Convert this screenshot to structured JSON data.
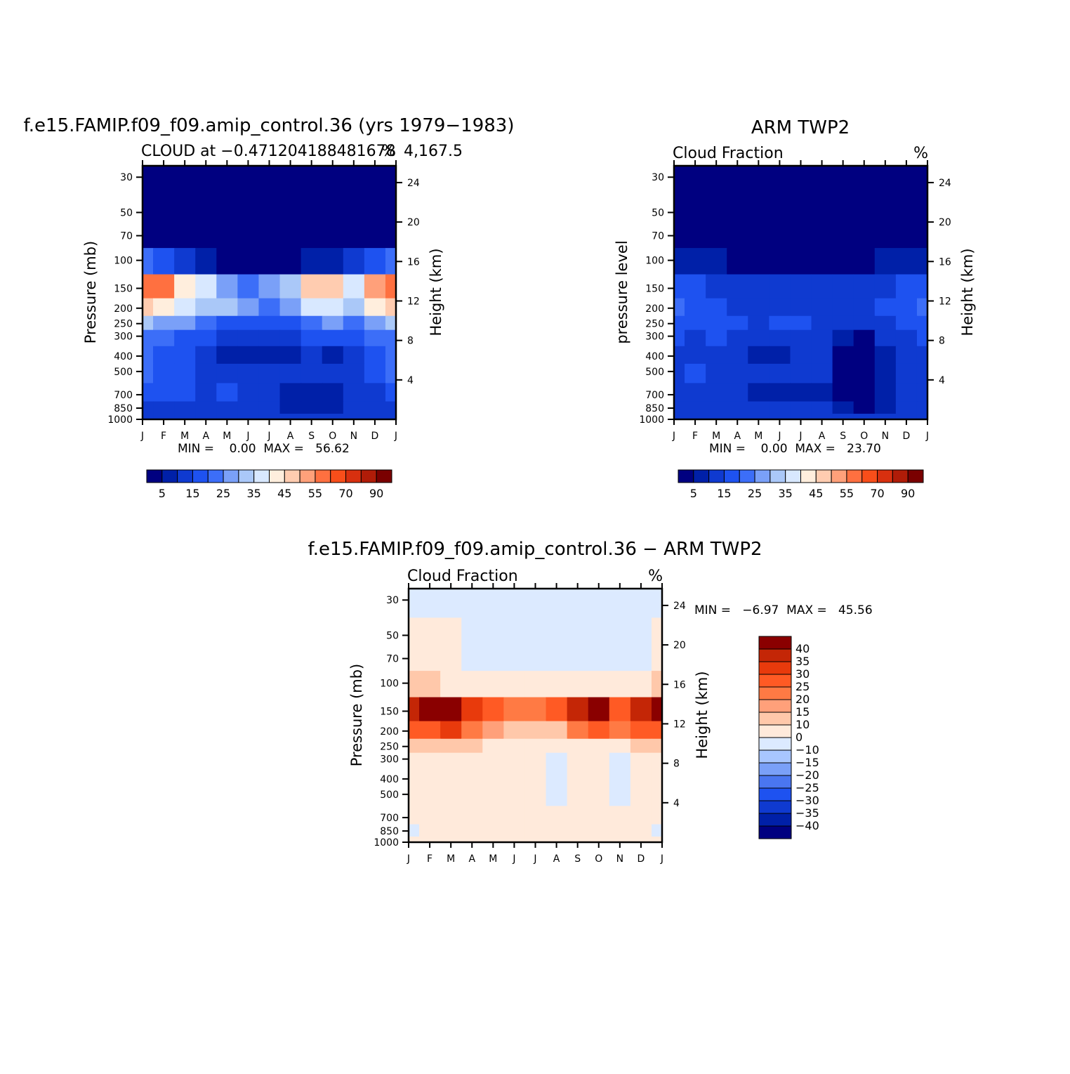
{
  "months": [
    "J",
    "F",
    "M",
    "A",
    "M",
    "J",
    "J",
    "A",
    "S",
    "O",
    "N",
    "D",
    "J"
  ],
  "pressure_ticks": [
    30,
    50,
    70,
    100,
    150,
    200,
    250,
    300,
    400,
    500,
    700,
    850,
    1000
  ],
  "height_ticks": [
    4,
    8,
    12,
    16,
    20,
    24
  ],
  "seq_levels": [
    "5",
    "15",
    "25",
    "35",
    "45",
    "55",
    "70",
    "90"
  ],
  "seq_colors": [
    "#000080",
    "#0020a8",
    "#0f3ad0",
    "#1e52f0",
    "#3c6ef8",
    "#7aa0f8",
    "#aac8f8",
    "#d8e8ff",
    "#ffeedd",
    "#ffccb0",
    "#ffa07a",
    "#ff7040",
    "#f84e1a",
    "#d8300f",
    "#b01c08",
    "#7a0000"
  ],
  "diff_levels": [
    "40",
    "35",
    "30",
    "25",
    "20",
    "15",
    "10",
    "0",
    "−10",
    "−15",
    "−20",
    "−25",
    "−30",
    "−35",
    "−40"
  ],
  "diff_colors": [
    "#8a0000",
    "#c42606",
    "#e83a0c",
    "#ff5a24",
    "#ff7a44",
    "#ffa07a",
    "#ffc8aa",
    "#ffeadb",
    "#dceaff",
    "#a8c6ff",
    "#7aa0f8",
    "#4a76f0",
    "#1e52f0",
    "#0f3ad0",
    "#0020a8",
    "#000080"
  ],
  "panels": [
    {
      "id": "model",
      "title": "f.e15.FAMIP.f09_f09.amip_control.36 (yrs 1979−1983)",
      "subtitle": "CLOUD at −0.471204188481678",
      "subtitle2": "4,167.5",
      "units": "%",
      "ylabel": "Pressure (mb)",
      "ylabel_right": "Height (km)",
      "stats": "MIN =    0.00  MAX =   56.62"
    },
    {
      "id": "obs",
      "title": "ARM TWP2",
      "subtitle": "Cloud Fraction",
      "units": "%",
      "ylabel": "pressure level",
      "ylabel_right": "Height (km)",
      "stats": "MIN =    0.00  MAX =   23.70"
    },
    {
      "id": "diff",
      "title": "f.e15.FAMIP.f09_f09.amip_control.36 − ARM TWP2",
      "subtitle": "Cloud Fraction",
      "units": "%",
      "ylabel": "Pressure (mb)",
      "ylabel_right": "Height (km)",
      "stats": "MIN =   −6.97  MAX =   45.56"
    }
  ],
  "chart_data": [
    {
      "type": "heatmap",
      "title": "f.e15.FAMIP.f09_f09.amip_control.36 (yrs 1979−1983)",
      "subtitle": "CLOUD at −0.4712041884816784,167.5",
      "xlabel": "",
      "ylabel": "Pressure (mb)",
      "ylabel_right": "Height (km)",
      "x": [
        "J",
        "F",
        "M",
        "A",
        "M",
        "J",
        "J",
        "A",
        "S",
        "O",
        "N",
        "D",
        "J"
      ],
      "y": [
        30,
        50,
        70,
        100,
        150,
        200,
        250,
        300,
        400,
        500,
        700,
        850,
        1000
      ],
      "ylim": [
        1000,
        30
      ],
      "yscale": "log",
      "min": 0.0,
      "max": 56.62,
      "values": [
        [
          0,
          0,
          0,
          0,
          0,
          0,
          0,
          0,
          0,
          0,
          0,
          0,
          0
        ],
        [
          0,
          0,
          0,
          0,
          0,
          0,
          0,
          0,
          0,
          0,
          0,
          0,
          0
        ],
        [
          1,
          1,
          1,
          1,
          1,
          1,
          1,
          1,
          1,
          1,
          1,
          1,
          1
        ],
        [
          20,
          15,
          12,
          6,
          4,
          3,
          2,
          3,
          6,
          8,
          12,
          18,
          20
        ],
        [
          55,
          56,
          40,
          35,
          28,
          24,
          26,
          30,
          45,
          48,
          38,
          50,
          55
        ],
        [
          45,
          43,
          35,
          33,
          30,
          26,
          24,
          28,
          35,
          38,
          32,
          42,
          45
        ],
        [
          30,
          28,
          25,
          22,
          18,
          15,
          15,
          18,
          22,
          25,
          24,
          28,
          30
        ],
        [
          22,
          20,
          18,
          15,
          12,
          10,
          10,
          12,
          15,
          18,
          18,
          20,
          22
        ],
        [
          20,
          18,
          15,
          10,
          8,
          8,
          8,
          9,
          10,
          8,
          10,
          15,
          20
        ],
        [
          20,
          18,
          18,
          12,
          14,
          14,
          12,
          10,
          12,
          10,
          12,
          15,
          20
        ],
        [
          18,
          16,
          15,
          14,
          15,
          12,
          10,
          8,
          8,
          8,
          12,
          14,
          18
        ],
        [
          12,
          12,
          12,
          12,
          12,
          12,
          10,
          8,
          8,
          8,
          10,
          12,
          12
        ],
        [
          10,
          10,
          10,
          10,
          10,
          10,
          10,
          10,
          10,
          10,
          10,
          10,
          10
        ]
      ]
    },
    {
      "type": "heatmap",
      "title": "ARM TWP2",
      "subtitle": "Cloud Fraction",
      "xlabel": "",
      "ylabel": "pressure level",
      "ylabel_right": "Height (km)",
      "x": [
        "J",
        "F",
        "M",
        "A",
        "M",
        "J",
        "J",
        "A",
        "S",
        "O",
        "N",
        "D",
        "J"
      ],
      "y": [
        30,
        50,
        70,
        100,
        150,
        200,
        250,
        300,
        400,
        500,
        700,
        850,
        1000
      ],
      "ylim": [
        1000,
        30
      ],
      "yscale": "log",
      "min": 0.0,
      "max": 23.7,
      "values": [
        [
          0,
          0,
          0,
          0,
          0,
          0,
          0,
          0,
          0,
          0,
          0,
          0,
          0
        ],
        [
          0,
          0,
          0,
          0,
          0,
          0,
          0,
          0,
          0,
          0,
          0,
          0,
          0
        ],
        [
          1,
          1,
          1,
          1,
          1,
          1,
          1,
          1,
          1,
          1,
          1,
          1,
          1
        ],
        [
          8,
          7,
          5,
          4,
          3,
          3,
          4,
          4,
          3,
          4,
          5,
          6,
          8
        ],
        [
          18,
          16,
          12,
          12,
          11,
          12,
          13,
          12,
          10,
          12,
          14,
          16,
          18
        ],
        [
          22,
          18,
          16,
          14,
          14,
          14,
          14,
          14,
          14,
          14,
          16,
          18,
          22
        ],
        [
          18,
          16,
          16,
          15,
          14,
          15,
          15,
          14,
          12,
          12,
          14,
          16,
          18
        ],
        [
          16,
          14,
          15,
          14,
          12,
          12,
          12,
          12,
          8,
          4,
          10,
          14,
          16
        ],
        [
          14,
          14,
          14,
          12,
          8,
          8,
          10,
          10,
          4,
          2,
          8,
          12,
          14
        ],
        [
          14,
          16,
          14,
          12,
          10,
          10,
          12,
          10,
          4,
          2,
          8,
          12,
          14
        ],
        [
          12,
          14,
          12,
          10,
          6,
          8,
          6,
          8,
          4,
          2,
          8,
          12,
          12
        ],
        [
          10,
          10,
          10,
          10,
          10,
          10,
          10,
          10,
          6,
          4,
          8,
          10,
          10
        ],
        [
          10,
          10,
          10,
          10,
          10,
          10,
          10,
          10,
          10,
          10,
          10,
          10,
          10
        ]
      ]
    },
    {
      "type": "heatmap",
      "title": "f.e15.FAMIP.f09_f09.amip_control.36 − ARM TWP2",
      "subtitle": "Cloud Fraction",
      "xlabel": "",
      "ylabel": "Pressure (mb)",
      "ylabel_right": "Height (km)",
      "x": [
        "J",
        "F",
        "M",
        "A",
        "M",
        "J",
        "J",
        "A",
        "S",
        "O",
        "N",
        "D",
        "J"
      ],
      "y": [
        30,
        50,
        70,
        100,
        150,
        200,
        250,
        300,
        400,
        500,
        700,
        850,
        1000
      ],
      "ylim": [
        1000,
        30
      ],
      "yscale": "log",
      "min": -6.97,
      "max": 45.56,
      "values": [
        [
          -1,
          -1,
          -1,
          -1,
          -1,
          -1,
          -1,
          -1,
          -1,
          -1,
          -1,
          -1,
          -1
        ],
        [
          1,
          1,
          1,
          -1,
          -1,
          -1,
          -1,
          -1,
          -1,
          -1,
          -1,
          -1,
          1
        ],
        [
          2,
          2,
          2,
          -1,
          -1,
          -1,
          -1,
          -1,
          -1,
          -1,
          -1,
          -1,
          3
        ],
        [
          12,
          10,
          8,
          6,
          5,
          4,
          4,
          4,
          6,
          6,
          6,
          8,
          12
        ],
        [
          37,
          40,
          45,
          30,
          25,
          24,
          24,
          25,
          38,
          42,
          28,
          38,
          40
        ],
        [
          25,
          25,
          30,
          20,
          15,
          12,
          12,
          14,
          20,
          25,
          20,
          25,
          25
        ],
        [
          12,
          12,
          12,
          10,
          5,
          3,
          4,
          5,
          6,
          8,
          8,
          10,
          12
        ],
        [
          8,
          8,
          6,
          6,
          4,
          2,
          2,
          -2,
          3,
          4,
          -2,
          6,
          8
        ],
        [
          6,
          5,
          5,
          4,
          3,
          2,
          2,
          -3,
          3,
          3,
          -4,
          4,
          6
        ],
        [
          4,
          4,
          4,
          4,
          6,
          3,
          2,
          -2,
          2,
          3,
          -3,
          3,
          4
        ],
        [
          3,
          3,
          3,
          3,
          3,
          3,
          3,
          3,
          3,
          3,
          3,
          3,
          3
        ],
        [
          -1,
          1,
          1,
          1,
          1,
          1,
          1,
          1,
          1,
          1,
          1,
          1,
          -1
        ],
        [
          2,
          2,
          2,
          2,
          2,
          2,
          2,
          2,
          2,
          2,
          2,
          2,
          2
        ]
      ]
    }
  ]
}
